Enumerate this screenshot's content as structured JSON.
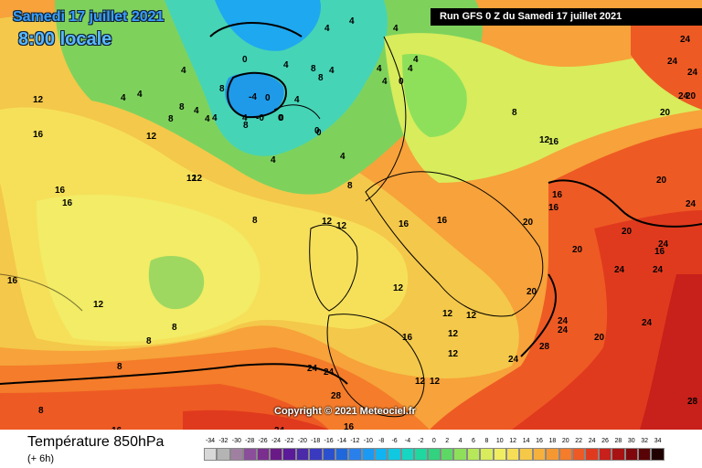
{
  "header": {
    "date_title": "Samedi 17 juillet 2021",
    "time_title": "8:00 locale",
    "run_info": "Run GFS 0 Z du Samedi 17 juillet 2021"
  },
  "map": {
    "copyright": "Copyright © 2021 Meteociel.fr",
    "isotherm_labels": [
      "4",
      "4",
      "4",
      "4",
      "0",
      "4",
      "8",
      "4",
      "0",
      "0",
      "4",
      "8",
      "4",
      "0",
      "0",
      "4",
      "4",
      "8",
      "4",
      "8",
      "8",
      "4",
      "-4",
      "-0",
      "0",
      "8",
      "4",
      "12",
      "4",
      "4",
      "16",
      "12",
      "16",
      "16",
      "12",
      "4",
      "12",
      "0",
      "4",
      "4",
      "4",
      "8",
      "8",
      "12",
      "12",
      "16",
      "16",
      "16",
      "20",
      "16",
      "20",
      "24",
      "20",
      "24",
      "8",
      "8",
      "12",
      "16",
      "16",
      "20",
      "24",
      "20",
      "24",
      "12",
      "12",
      "16",
      "12",
      "12",
      "12",
      "12",
      "12",
      "24",
      "24",
      "28",
      "24",
      "20",
      "24",
      "24",
      "24",
      "28",
      "28",
      "20",
      "20",
      "12",
      "8",
      "8",
      "8",
      "16",
      "24",
      "16",
      "16",
      "24",
      "24",
      "24",
      "24"
    ]
  },
  "footer": {
    "variable_title": "Température 850hPa",
    "variable_subtitle": "(+ 6h)",
    "scale_values": [
      "-34",
      "-32",
      "-30",
      "-28",
      "-26",
      "-24",
      "-22",
      "-20",
      "-18",
      "-16",
      "-14",
      "-12",
      "-10",
      "-8",
      "-6",
      "-4",
      "-2",
      "0",
      "2",
      "4",
      "6",
      "8",
      "10",
      "12",
      "14",
      "16",
      "18",
      "20",
      "22",
      "24",
      "26",
      "28",
      "30",
      "32",
      "34"
    ],
    "scale_colors": [
      "#d8d8d8",
      "#b4b4b4",
      "#a080a0",
      "#8a4e9a",
      "#7a2f8e",
      "#6a1a86",
      "#5a1a9a",
      "#4a2aa8",
      "#3a3ac0",
      "#2a50d0",
      "#1f68dc",
      "#2a80ea",
      "#1a9af4",
      "#10b4f2",
      "#10c8e0",
      "#16d6c2",
      "#1ed8a0",
      "#32d27e",
      "#5ed864",
      "#8ee05a",
      "#b6e85a",
      "#d8ec5c",
      "#f0ee60",
      "#f6de56",
      "#f6c848",
      "#f6b03c",
      "#f69832",
      "#f47c2a",
      "#ee5a24",
      "#e03a1e",
      "#c8201a",
      "#a81212",
      "#80080c",
      "#580406",
      "#200000"
    ]
  }
}
